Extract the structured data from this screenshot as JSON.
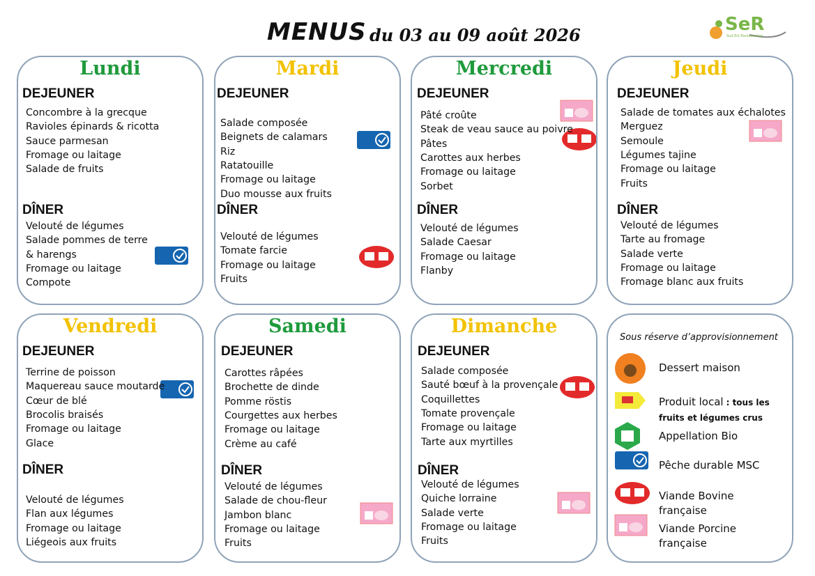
{
  "header": {
    "title": "MENUS",
    "subtitle": "du 03 au 09 août 2026",
    "logo": "SeR",
    "logo_tagline": "Sud Est Restauration"
  },
  "lunch_label": "DEJEUNER",
  "dinner_label": "DÎNER",
  "days": [
    {
      "name": "Lundi",
      "color": "#1f9a3c",
      "lunch": [
        "Concombre à la grecque",
        "Ravioles épinards & ricotta",
        "Sauce parmesan",
        "Fromage ou laitage",
        "Salade de fruits"
      ],
      "dinner": [
        "Velouté de légumes",
        "Salade pommes de terre",
        "& harengs",
        "Fromage ou laitage",
        "Compote"
      ]
    },
    {
      "name": "Mardi",
      "color": "#f2c200",
      "lunch": [
        "Salade composée",
        "Beignets de calamars",
        "Riz",
        "Ratatouille",
        "Fromage ou laitage",
        "Duo mousse aux fruits"
      ],
      "dinner": [
        "Velouté de légumes",
        "Tomate farcie",
        "Fromage ou laitage",
        "Fruits"
      ]
    },
    {
      "name": "Mercredi",
      "color": "#1f9a3c",
      "lunch": [
        "Pâté croûte",
        "Steak de veau sauce au poivre",
        "Pâtes",
        "Carottes aux herbes",
        "Fromage ou laitage",
        "Sorbet"
      ],
      "dinner": [
        "Velouté de légumes",
        "Salade Caesar",
        "Fromage ou laitage",
        "Flanby"
      ]
    },
    {
      "name": "Jeudi",
      "color": "#f2c200",
      "lunch": [
        "Salade de tomates aux échalotes",
        "Merguez",
        "Semoule",
        "Légumes tajine",
        "Fromage ou laitage",
        "Fruits"
      ],
      "dinner": [
        "Velouté de légumes",
        "Tarte au fromage",
        "Salade verte",
        "Fromage ou laitage",
        "Fromage blanc aux fruits"
      ]
    },
    {
      "name": "Vendredi",
      "color": "#f2c200",
      "lunch": [
        "Terrine de poisson",
        "Maquereau sauce moutarde",
        "Cœur de blé",
        "Brocolis braisés",
        "Fromage ou laitage",
        "Glace"
      ],
      "dinner": [
        "Velouté de légumes",
        "Flan aux légumes",
        "Fromage ou laitage",
        "Liégeois aux fruits"
      ]
    },
    {
      "name": "Samedi",
      "color": "#1f9a3c",
      "lunch": [
        "Carottes râpées",
        "Brochette de dinde",
        "Pomme röstis",
        "Courgettes aux herbes",
        "Fromage ou laitage",
        "Crème au café"
      ],
      "dinner": [
        "Velouté de légumes",
        "Salade de chou-fleur",
        "Jambon blanc",
        "Fromage ou laitage",
        "Fruits"
      ]
    },
    {
      "name": "Dimanche",
      "color": "#f2c200",
      "lunch": [
        "Salade composée",
        "Sauté bœuf à la provençale",
        "Coquillettes",
        "Tomate provençale",
        "Fromage ou laitage",
        "Tarte aux myrtilles"
      ],
      "dinner": [
        "Velouté de légumes",
        "Quiche lorraine",
        "Salade verte",
        "Fromage ou laitage",
        "Fruits"
      ]
    }
  ],
  "legend": {
    "title": "Sous réserve d’approvisionnement",
    "items": [
      {
        "label": "Dessert maison"
      },
      {
        "label": "Produit local",
        "note": ": tous les fruits et légumes crus"
      },
      {
        "label": "Appellation Bio"
      },
      {
        "label": "Pêche durable MSC"
      },
      {
        "label": "Viande Bovine française"
      },
      {
        "label": "Viande Porcine française"
      }
    ]
  }
}
